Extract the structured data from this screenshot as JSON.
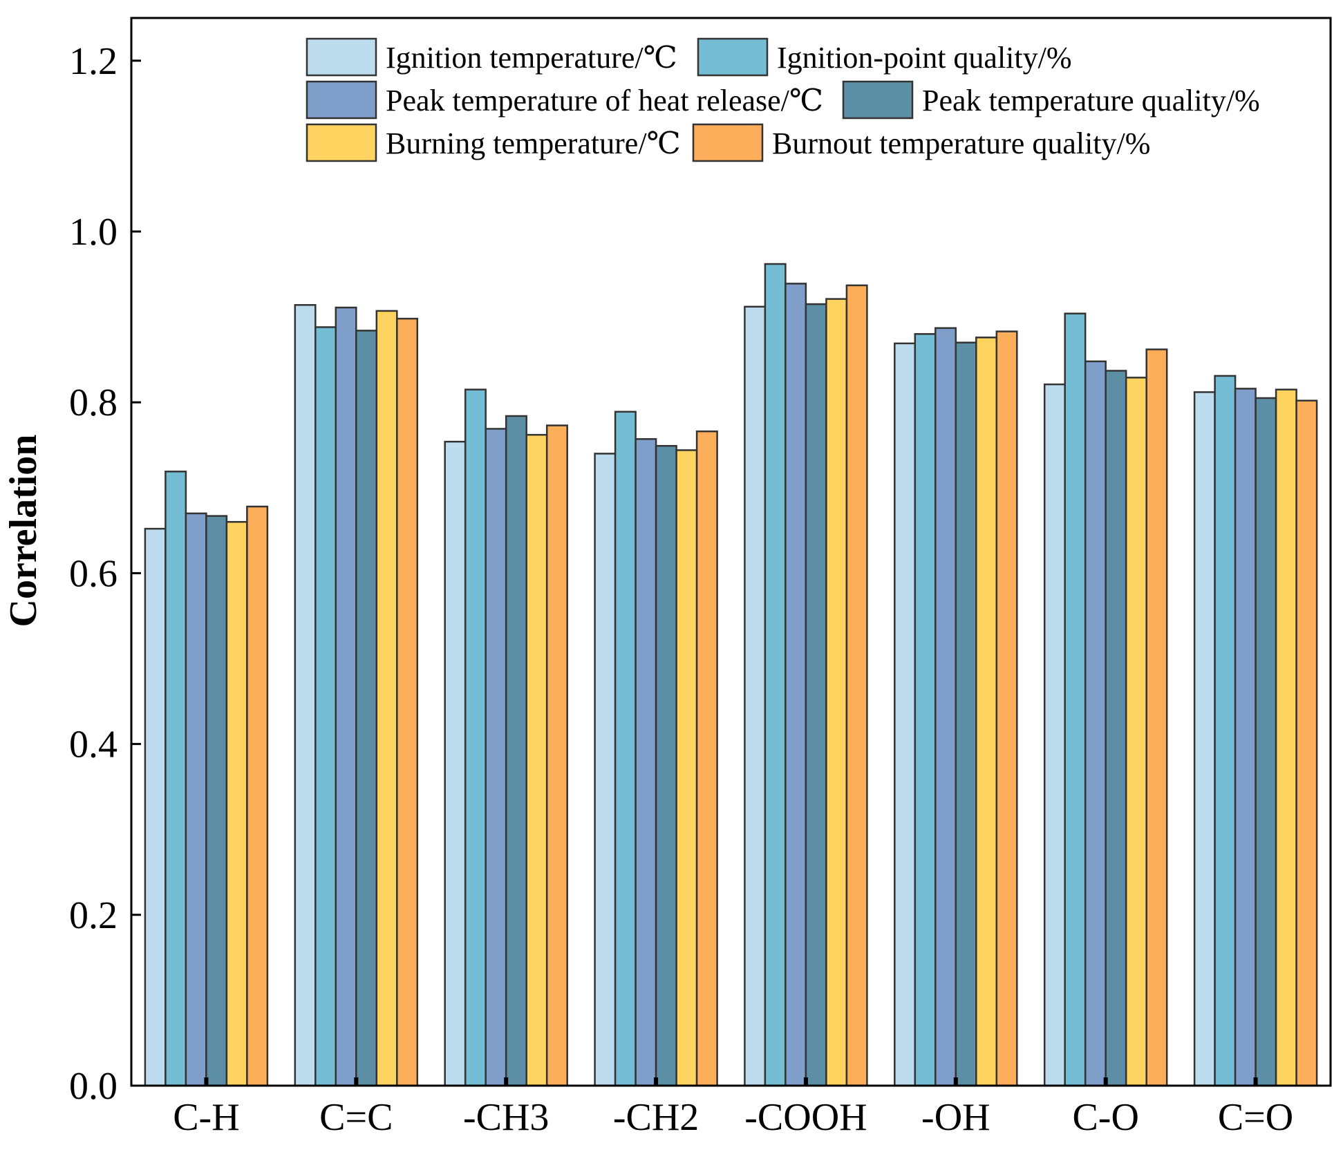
{
  "chart_data": {
    "type": "bar",
    "title": "",
    "xlabel": "",
    "ylabel": "Correlation",
    "ylim": [
      0.0,
      1.25
    ],
    "yticks": [
      "0.0",
      "0.2",
      "0.4",
      "0.6",
      "0.8",
      "1.0",
      "1.2"
    ],
    "ytick_values": [
      0.0,
      0.2,
      0.4,
      0.6,
      0.8,
      1.0,
      1.2
    ],
    "legend_position": "top-center",
    "categories": [
      "C-H",
      "C=C",
      "-CH3",
      "-CH2",
      "-COOH",
      "-OH",
      "C-O",
      "C=O"
    ],
    "series": [
      {
        "name": "Ignition temperature/℃",
        "color": "#BDDDEE",
        "values": [
          0.652,
          0.914,
          0.754,
          0.74,
          0.912,
          0.869,
          0.821,
          0.812
        ]
      },
      {
        "name": "Ignition-point quality/%",
        "color": "#75BDD5",
        "values": [
          0.719,
          0.888,
          0.815,
          0.789,
          0.962,
          0.88,
          0.904,
          0.831
        ]
      },
      {
        "name": "Peak temperature of heat release/℃",
        "color": "#7F9FCA",
        "values": [
          0.67,
          0.911,
          0.769,
          0.757,
          0.939,
          0.887,
          0.848,
          0.816
        ]
      },
      {
        "name": "Peak temperature quality/%",
        "color": "#5C8FA6",
        "values": [
          0.667,
          0.884,
          0.784,
          0.749,
          0.915,
          0.87,
          0.837,
          0.805
        ]
      },
      {
        "name": "Burning temperature/℃",
        "color": "#FFD35F",
        "values": [
          0.66,
          0.907,
          0.762,
          0.744,
          0.921,
          0.876,
          0.829,
          0.815
        ]
      },
      {
        "name": "Burnout temperature quality/%",
        "color": "#FCAE5B",
        "values": [
          0.678,
          0.898,
          0.773,
          0.766,
          0.937,
          0.883,
          0.862,
          0.802
        ]
      }
    ]
  }
}
